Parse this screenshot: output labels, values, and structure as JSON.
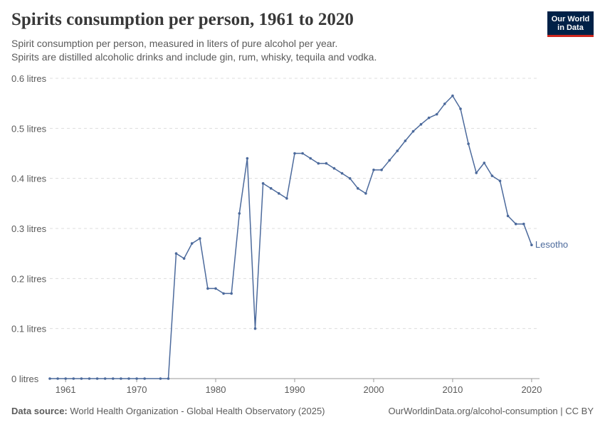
{
  "header": {
    "title": "Spirits consumption per person, 1961 to 2020",
    "subtitle_line1": "Spirit consumption per person, measured in liters of pure alcohol per year.",
    "subtitle_line2": "Spirits are distilled alcoholic drinks and include gin, rum, whisky, tequila and vodka."
  },
  "logo": {
    "line1": "Our World",
    "line2": "in Data"
  },
  "footer": {
    "source_label": "Data source:",
    "source_text": " World Health Organization - Global Health Observatory (2025)",
    "credit": "OurWorldinData.org/alcohol-consumption | CC BY"
  },
  "colors": {
    "series": "#4c6a9c",
    "grid": "#dddddd",
    "text": "#5b5b5b",
    "brand": "#002147",
    "brand_accent": "#ce261e"
  },
  "chart_data": {
    "type": "line",
    "title": "Spirits consumption per person, 1961 to 2020",
    "xlabel": "",
    "ylabel": "",
    "xlim": [
      1959,
      2021
    ],
    "ylim": [
      0,
      0.6
    ],
    "y_ticks": [
      {
        "value": 0,
        "label": "0 litres"
      },
      {
        "value": 0.1,
        "label": "0.1 litres"
      },
      {
        "value": 0.2,
        "label": "0.2 litres"
      },
      {
        "value": 0.3,
        "label": "0.3 litres"
      },
      {
        "value": 0.4,
        "label": "0.4 litres"
      },
      {
        "value": 0.5,
        "label": "0.5 litres"
      },
      {
        "value": 0.6,
        "label": "0.6 litres"
      }
    ],
    "x_ticks": [
      {
        "value": 1961,
        "label": "1961"
      },
      {
        "value": 1970,
        "label": "1970"
      },
      {
        "value": 1980,
        "label": "1980"
      },
      {
        "value": 1990,
        "label": "1990"
      },
      {
        "value": 2000,
        "label": "2000"
      },
      {
        "value": 2010,
        "label": "2010"
      },
      {
        "value": 2020,
        "label": "2020"
      }
    ],
    "grid": true,
    "legend": "end-of-line label",
    "series": [
      {
        "name": "Lesotho",
        "x": [
          1959,
          1960,
          1961,
          1962,
          1963,
          1964,
          1965,
          1966,
          1967,
          1968,
          1969,
          1970,
          1971,
          1973,
          1974,
          1975,
          1976,
          1977,
          1978,
          1979,
          1980,
          1981,
          1982,
          1983,
          1984,
          1985,
          1986,
          1987,
          1988,
          1989,
          1990,
          1991,
          1992,
          1993,
          1994,
          1995,
          1996,
          1997,
          1998,
          1999,
          2000,
          2001,
          2002,
          2003,
          2004,
          2005,
          2006,
          2007,
          2008,
          2009,
          2010,
          2011,
          2012,
          2013,
          2014,
          2015,
          2016,
          2017,
          2018,
          2019,
          2020
        ],
        "y": [
          0,
          0,
          0,
          0,
          0,
          0,
          0,
          0,
          0,
          0,
          0,
          0,
          0,
          0,
          0,
          0.25,
          0.24,
          0.27,
          0.28,
          0.18,
          0.18,
          0.17,
          0.17,
          0.33,
          0.44,
          0.1,
          0.39,
          0.38,
          0.37,
          0.36,
          0.45,
          0.45,
          0.44,
          0.43,
          0.43,
          0.42,
          0.41,
          0.4,
          0.38,
          0.37,
          0.417,
          0.417,
          0.436,
          0.455,
          0.475,
          0.494,
          0.508,
          0.521,
          0.528,
          0.549,
          0.565,
          0.539,
          0.469,
          0.411,
          0.431,
          0.405,
          0.395,
          0.325,
          0.309,
          0.309,
          0.267
        ]
      }
    ]
  }
}
